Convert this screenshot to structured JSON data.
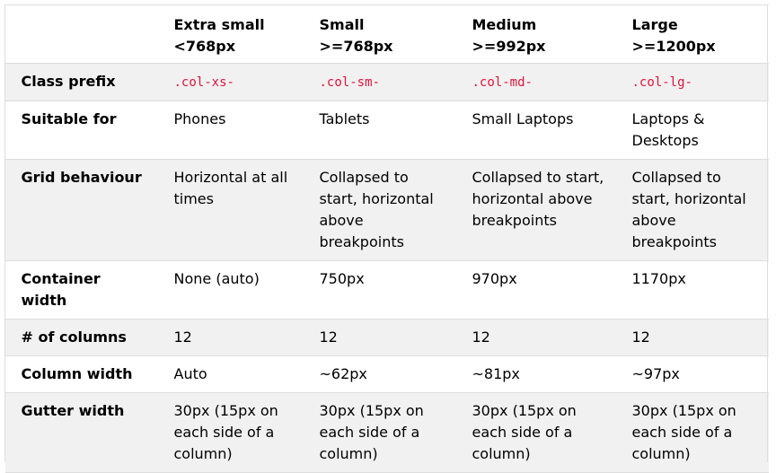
{
  "table": {
    "header": {
      "corner": "",
      "columns": [
        {
          "name": "Extra small",
          "range": "<768px"
        },
        {
          "name": "Small",
          "range": ">=768px"
        },
        {
          "name": "Medium",
          "range": ">=992px"
        },
        {
          "name": "Large",
          "range": ">=1200px"
        }
      ]
    },
    "rows": [
      {
        "label": "Class prefix",
        "cells": [
          ".col-xs-",
          ".col-sm-",
          ".col-md-",
          ".col-lg-"
        ]
      },
      {
        "label": "Suitable for",
        "cells": [
          "Phones",
          "Tablets",
          "Small Laptops",
          "Laptops & Desktops"
        ]
      },
      {
        "label": "Grid behaviour",
        "cells": [
          "Horizontal at all times",
          "Collapsed to start, horizontal above breakpoints",
          "Collapsed to start, horizontal above breakpoints",
          "Collapsed to start, horizontal above breakpoints"
        ]
      },
      {
        "label": "Container width",
        "cells": [
          "None (auto)",
          "750px",
          "970px",
          "1170px"
        ]
      },
      {
        "label": "# of columns",
        "cells": [
          "12",
          "12",
          "12",
          "12"
        ]
      },
      {
        "label": "Column width",
        "cells": [
          "Auto",
          "~62px",
          "~81px",
          "~97px"
        ]
      },
      {
        "label": "Gutter width",
        "cells": [
          "30px (15px on each side of a column)",
          "30px (15px on each side of a column)",
          "30px (15px on each side of a column)",
          "30px (15px on each side of a column)"
        ]
      }
    ]
  },
  "colors": {
    "stripe": "#f1f1f1",
    "border": "#dddddd",
    "code": "#dc143c",
    "text": "#000000"
  }
}
